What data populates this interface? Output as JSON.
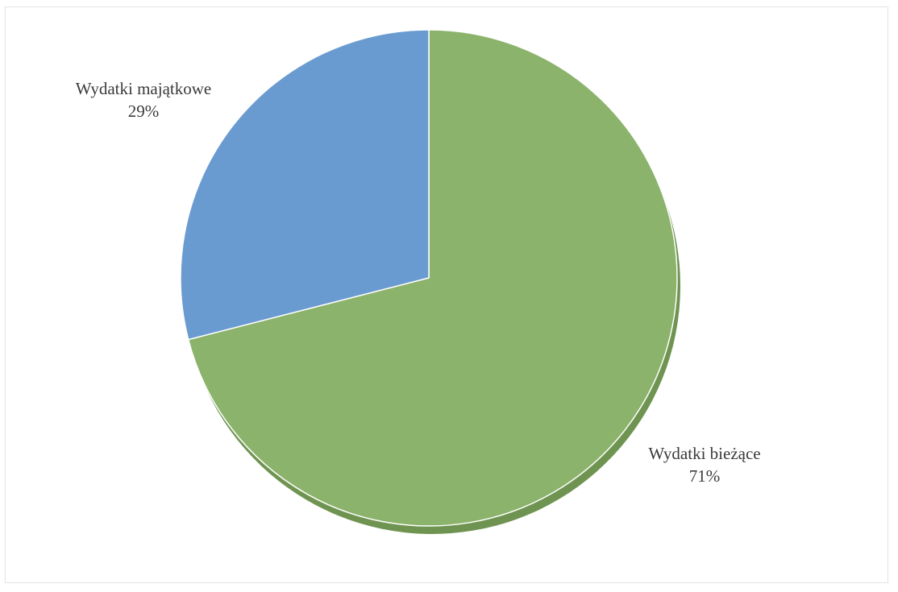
{
  "chart_data": {
    "type": "pie",
    "start_angle_deg": 0,
    "direction": "clockwise",
    "slices": [
      {
        "label": "Wydatki bieżące",
        "value": 71,
        "display": "71%",
        "color": "#8bb36b",
        "shadow_color": "#6f9451"
      },
      {
        "label": "Wydatki majątkowe",
        "value": 29,
        "display": "29%",
        "color": "#6a9bd0",
        "shadow_color": "#5683b5"
      }
    ],
    "legend": "none"
  }
}
